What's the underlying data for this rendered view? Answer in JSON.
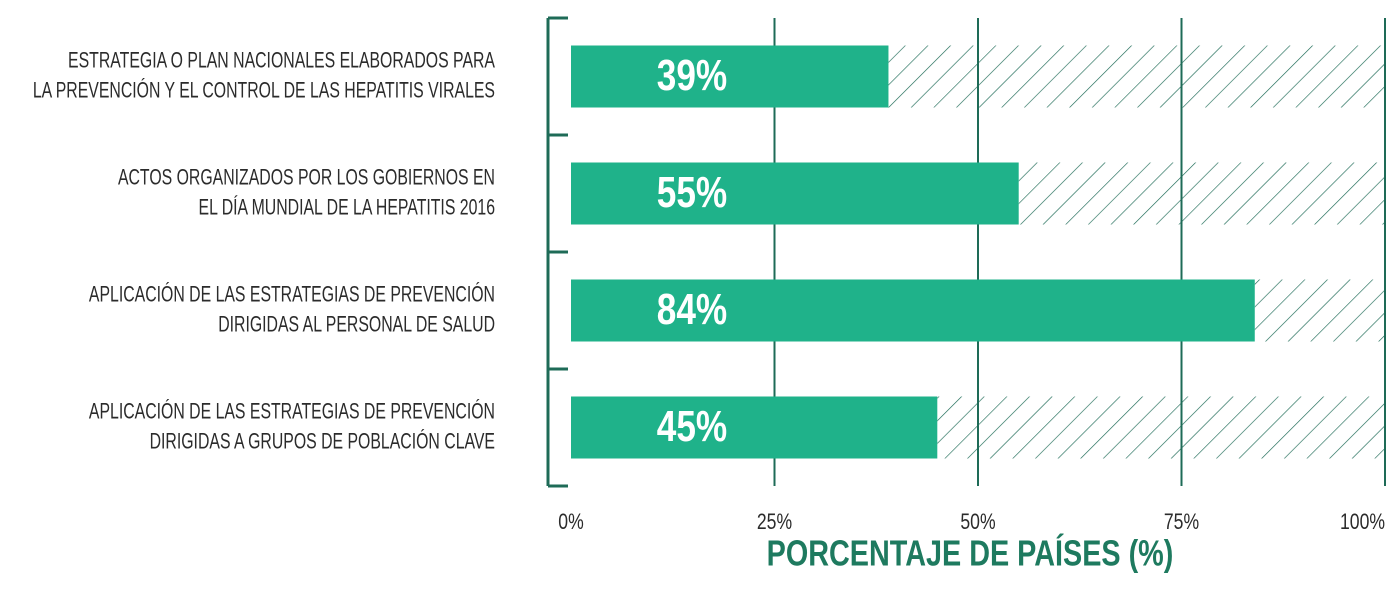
{
  "chart_data": {
    "type": "bar",
    "orientation": "horizontal",
    "categories": [
      [
        "ESTRATEGIA O PLAN NACIONALES ELABORADOS PARA",
        "LA PREVENCIÓN Y EL CONTROL DE LAS HEPATITIS VIRALES"
      ],
      [
        "ACTOS ORGANIZADOS POR LOS GOBIERNOS EN",
        "EL DÍA MUNDIAL DE LA HEPATITIS 2016"
      ],
      [
        "APLICACIÓN DE LAS ESTRATEGIAS DE PREVENCIÓN",
        "DIRIGIDAS AL PERSONAL DE SALUD"
      ],
      [
        "APLICACIÓN DE LAS ESTRATEGIAS DE PREVENCIÓN",
        "DIRIGIDAS A GRUPOS DE POBLACIÓN CLAVE"
      ]
    ],
    "values": [
      39,
      55,
      84,
      45
    ],
    "value_labels": [
      "39%",
      "55%",
      "84%",
      "45%"
    ],
    "color": "#1fb28a",
    "xlim": [
      0,
      100
    ],
    "xticks": [
      {
        "value": 0,
        "label": "0%"
      },
      {
        "value": 25,
        "label": "25%"
      },
      {
        "value": 50,
        "label": "50%"
      },
      {
        "value": 75,
        "label": "75%"
      },
      {
        "value": 100,
        "label": "100%"
      }
    ],
    "x_label": "PORCENTAJE DE PAÍSES (%)",
    "grid": true
  }
}
